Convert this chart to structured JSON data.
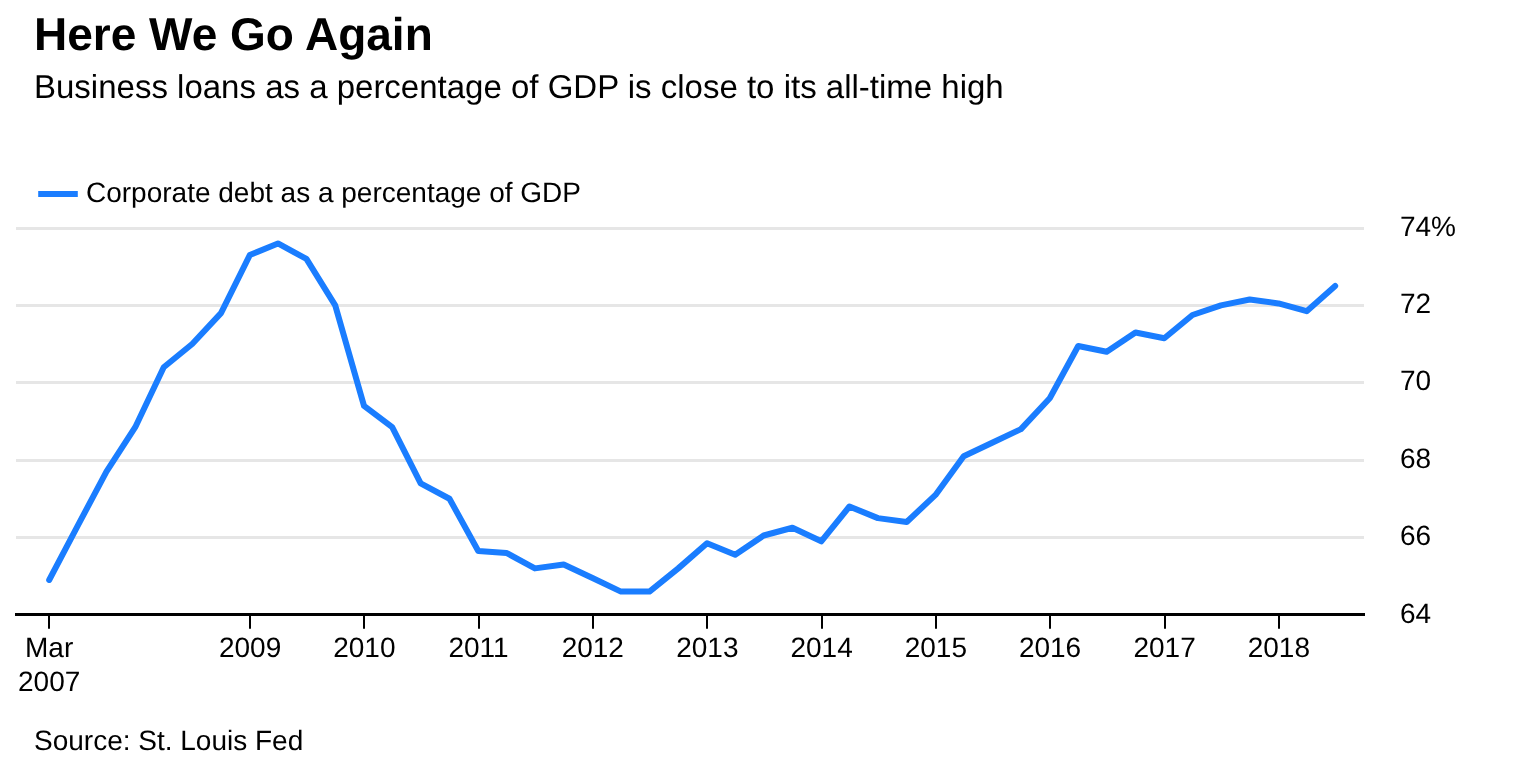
{
  "chart_data": {
    "type": "line",
    "title": "Here We Go Again",
    "subtitle": "Business loans as a percentage of GDP is close to its all-time high",
    "x": [
      "2007-03-31",
      "2007-06-30",
      "2007-09-30",
      "2007-12-31",
      "2008-03-31",
      "2008-06-30",
      "2008-09-30",
      "2008-12-31",
      "2009-03-31",
      "2009-06-30",
      "2009-09-30",
      "2009-12-31",
      "2010-03-31",
      "2010-06-30",
      "2010-09-30",
      "2010-12-31",
      "2011-03-31",
      "2011-06-30",
      "2011-09-30",
      "2011-12-31",
      "2012-03-31",
      "2012-06-30",
      "2012-09-30",
      "2012-12-31",
      "2013-03-31",
      "2013-06-30",
      "2013-09-30",
      "2013-12-31",
      "2014-03-31",
      "2014-06-30",
      "2014-09-30",
      "2014-12-31",
      "2015-03-31",
      "2015-06-30",
      "2015-09-30",
      "2015-12-31",
      "2016-03-31",
      "2016-06-30",
      "2016-09-30",
      "2016-12-31",
      "2017-03-31",
      "2017-06-30",
      "2017-09-30",
      "2017-12-31",
      "2018-03-31",
      "2018-06-30"
    ],
    "series": [
      {
        "name": "Corporate debt as a percentage of GDP",
        "color": "#1a7dff",
        "values": [
          64.9,
          66.3,
          67.7,
          68.85,
          70.4,
          71.0,
          71.8,
          73.3,
          73.6,
          73.2,
          72.0,
          69.4,
          68.85,
          67.4,
          67.0,
          65.65,
          65.6,
          65.2,
          65.3,
          64.95,
          64.6,
          64.6,
          65.2,
          65.85,
          65.55,
          66.05,
          66.25,
          65.9,
          66.8,
          66.5,
          66.4,
          67.1,
          68.1,
          68.45,
          68.8,
          69.6,
          70.95,
          70.8,
          71.3,
          71.15,
          71.75,
          72.0,
          72.15,
          72.05,
          71.85,
          72.5
        ]
      }
    ],
    "xlim": [
      "2006-12-15",
      "2018-09-30"
    ],
    "xticks": [
      {
        "value": "2007-03-31",
        "label": "Mar 2007"
      },
      "2009",
      "2010",
      "2011",
      "2012",
      "2013",
      "2014",
      "2015",
      "2016",
      "2017",
      "2018"
    ],
    "ylim": [
      64,
      74
    ],
    "yticks": [
      64,
      66,
      68,
      70,
      72,
      {
        "value": 74,
        "label": "74%"
      }
    ],
    "grid": "y",
    "legend": "top left",
    "marker": "none",
    "line_style": "solid",
    "annotations": [
      "Source: St. Louis Fed"
    ]
  }
}
